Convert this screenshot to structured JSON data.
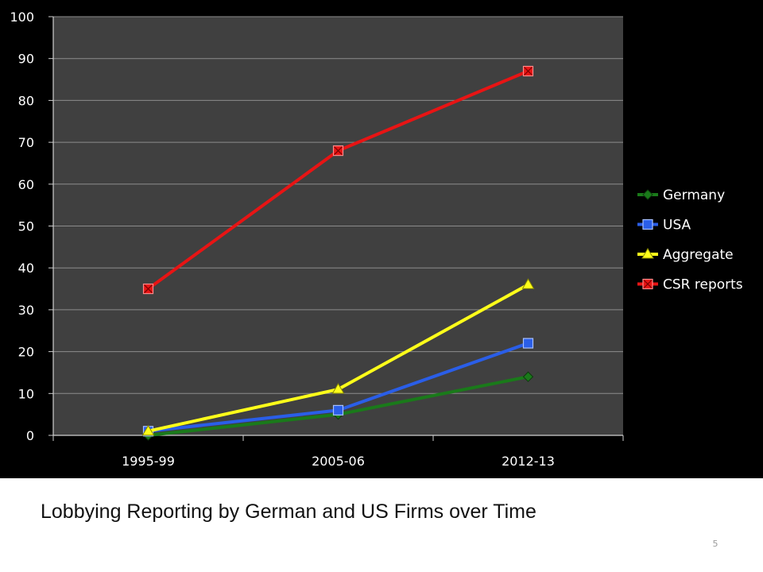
{
  "caption": "Lobbying Reporting by German and US Firms over Time",
  "slide_number": "5",
  "chart_data": {
    "type": "line",
    "categories": [
      "1995-99",
      "2005-06",
      "2012-13"
    ],
    "series": [
      {
        "name": "Germany",
        "values": [
          0,
          5,
          14
        ],
        "color": "#1a7a1a",
        "marker": "diamond"
      },
      {
        "name": "USA",
        "values": [
          1,
          6,
          22
        ],
        "color": "#2a5ee8",
        "marker": "square"
      },
      {
        "name": "Aggregate",
        "values": [
          1,
          11,
          36
        ],
        "color": "#ffff1a",
        "marker": "triangle"
      },
      {
        "name": "CSR reports",
        "values": [
          35,
          68,
          87
        ],
        "color": "#e81414",
        "marker": "square-x"
      }
    ],
    "ylim": [
      0,
      100
    ],
    "yticks": [
      0,
      10,
      20,
      30,
      40,
      50,
      60,
      70,
      80,
      90,
      100
    ],
    "grid": true,
    "legend_position": "right",
    "plot_background": "#404040",
    "background": "#000000"
  }
}
